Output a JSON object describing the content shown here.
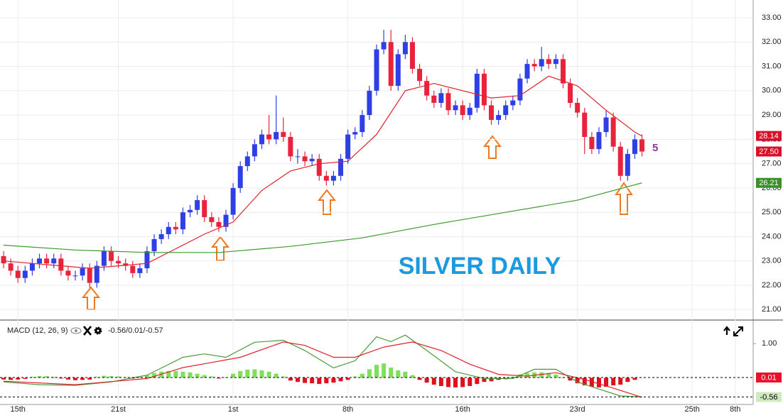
{
  "chart_data": [
    {
      "type": "candlestick",
      "title": "SILVER DAILY",
      "annotation": "5",
      "xlim": [
        -0.5,
        104.5
      ],
      "xticks": [
        {
          "value": 2,
          "label": "15th"
        },
        {
          "value": 16,
          "label": "21st"
        },
        {
          "value": 32,
          "label": "1st"
        },
        {
          "value": 48,
          "label": "8th"
        },
        {
          "value": 64,
          "label": "16th"
        },
        {
          "value": 80,
          "label": "23rd"
        },
        {
          "value": 96,
          "label": "25th"
        },
        {
          "value": 102,
          "label": "8th"
        }
      ],
      "ylim": [
        20.6,
        33.73
      ],
      "yticks": [
        {
          "value": 21,
          "label": "21.00"
        },
        {
          "value": 22,
          "label": "22.00"
        },
        {
          "value": 23,
          "label": "23.00"
        },
        {
          "value": 24,
          "label": "24.00"
        },
        {
          "value": 25,
          "label": "25.00"
        },
        {
          "value": 26,
          "label": "26.00"
        },
        {
          "value": 27,
          "label": "27.00"
        },
        {
          "value": 28,
          "label": "28.00"
        },
        {
          "value": 29,
          "label": "29.00"
        },
        {
          "value": 30,
          "label": "30.00"
        },
        {
          "value": 31,
          "label": "31.00"
        },
        {
          "value": 32,
          "label": "32.00"
        },
        {
          "value": 33,
          "label": "33.00"
        }
      ],
      "grid": true,
      "up_color": "#2f3fe6",
      "down_color": "#e8243c",
      "open": [
        23.2,
        22.9,
        22.6,
        22.3,
        22.6,
        22.9,
        23.1,
        22.9,
        23.1,
        22.6,
        22.4,
        22.4,
        22.7,
        22.1,
        22.8,
        23.4,
        23.0,
        22.9,
        22.8,
        22.5,
        22.7,
        23.4,
        23.9,
        24.1,
        24.4,
        24.3,
        25.0,
        25.1,
        25.5,
        24.8,
        24.6,
        24.4,
        24.9,
        26.0,
        26.9,
        27.3,
        27.8,
        28.2,
        28.0,
        28.3,
        28.1,
        27.3,
        27.3,
        27.1,
        27.2,
        26.5,
        26.3,
        26.5,
        27.2,
        28.2,
        28.3,
        29.0,
        30.0,
        31.7,
        32.0,
        30.2,
        31.5,
        32.0,
        30.9,
        30.4,
        29.8,
        29.5,
        29.9,
        29.2,
        29.4,
        29.0,
        29.3,
        30.7,
        29.4,
        28.8,
        29.0,
        29.4,
        29.6,
        30.5,
        31.1,
        31.0,
        31.3,
        31.1,
        31.3,
        30.3,
        29.5,
        29.1,
        28.1,
        27.6,
        28.3,
        28.9,
        27.7,
        26.5,
        27.4,
        28.0
      ],
      "high": [
        23.4,
        23.1,
        22.8,
        22.8,
        23.1,
        23.3,
        23.3,
        23.3,
        23.3,
        22.8,
        22.6,
        22.9,
        22.9,
        23.0,
        23.6,
        23.6,
        23.2,
        23.1,
        23.0,
        22.9,
        23.6,
        24.1,
        24.3,
        24.6,
        24.6,
        25.2,
        25.3,
        25.7,
        25.7,
        25.0,
        24.8,
        25.1,
        26.2,
        27.1,
        27.5,
        28.0,
        28.4,
        29.0,
        29.8,
        28.9,
        28.3,
        27.6,
        27.5,
        27.4,
        27.4,
        26.7,
        26.7,
        27.4,
        28.4,
        28.5,
        29.2,
        30.2,
        31.9,
        32.5,
        32.5,
        31.7,
        32.3,
        32.2,
        31.1,
        30.6,
        30.0,
        30.1,
        30.1,
        29.6,
        29.6,
        29.5,
        30.9,
        30.9,
        29.6,
        29.2,
        29.6,
        29.8,
        30.7,
        31.3,
        31.3,
        31.8,
        31.5,
        31.5,
        31.5,
        30.5,
        29.7,
        29.3,
        28.3,
        28.5,
        29.2,
        29.1,
        27.9,
        27.6,
        28.2,
        28.2
      ],
      "low": [
        22.7,
        22.4,
        22.1,
        22.1,
        22.4,
        22.7,
        22.7,
        22.7,
        22.4,
        22.2,
        22.2,
        22.2,
        21.9,
        21.9,
        22.6,
        22.8,
        22.7,
        22.6,
        22.3,
        22.3,
        22.5,
        23.2,
        23.7,
        23.9,
        24.1,
        24.1,
        24.8,
        24.9,
        24.6,
        24.4,
        24.2,
        24.2,
        24.7,
        25.8,
        26.7,
        27.1,
        27.6,
        27.8,
        27.8,
        27.9,
        27.1,
        27.0,
        26.9,
        26.9,
        26.3,
        26.1,
        26.1,
        26.3,
        27.0,
        28.0,
        28.1,
        28.8,
        29.8,
        31.5,
        30.0,
        30.0,
        31.3,
        30.7,
        30.2,
        29.6,
        29.3,
        29.3,
        29.0,
        29.0,
        28.8,
        28.8,
        29.1,
        29.2,
        28.6,
        28.6,
        28.8,
        29.2,
        29.4,
        30.3,
        30.8,
        30.8,
        30.9,
        30.9,
        30.1,
        29.3,
        28.9,
        27.4,
        27.4,
        27.4,
        28.1,
        27.5,
        26.3,
        26.3,
        27.2,
        27.3
      ],
      "close": [
        22.9,
        22.6,
        22.3,
        22.6,
        22.9,
        23.1,
        22.9,
        23.1,
        22.6,
        22.4,
        22.4,
        22.7,
        22.1,
        22.8,
        23.4,
        23.0,
        22.9,
        22.8,
        22.5,
        22.7,
        23.4,
        23.9,
        24.1,
        24.4,
        24.3,
        25.0,
        25.1,
        25.5,
        24.8,
        24.6,
        24.4,
        24.9,
        26.0,
        26.9,
        27.3,
        27.8,
        28.2,
        28.0,
        28.3,
        28.1,
        27.3,
        27.3,
        27.1,
        27.2,
        26.5,
        26.3,
        26.5,
        27.2,
        28.2,
        28.3,
        29.0,
        30.0,
        31.7,
        32.0,
        30.2,
        31.5,
        32.0,
        30.9,
        30.4,
        29.8,
        29.5,
        29.9,
        29.2,
        29.4,
        29.0,
        29.3,
        30.7,
        29.4,
        28.8,
        29.0,
        29.4,
        29.6,
        30.5,
        31.1,
        31.0,
        31.3,
        31.1,
        31.3,
        30.3,
        29.5,
        29.1,
        28.1,
        27.6,
        28.3,
        28.9,
        27.7,
        26.5,
        27.4,
        28.0,
        27.5
      ],
      "overlays": [
        {
          "color": "#e0202a",
          "x": [
            0,
            4,
            8,
            12,
            16,
            20,
            24,
            28,
            32,
            36,
            40,
            44,
            48,
            52,
            56,
            60,
            64,
            68,
            72,
            76,
            80,
            84,
            88,
            89
          ],
          "values": [
            23.0,
            22.9,
            22.8,
            22.7,
            22.8,
            22.9,
            23.5,
            24.1,
            24.6,
            25.9,
            26.7,
            27.0,
            27.1,
            28.2,
            30.0,
            30.3,
            30.0,
            29.7,
            29.8,
            30.6,
            30.2,
            29.2,
            28.3,
            28.14
          ]
        },
        {
          "color": "#3c9a2c",
          "x": [
            0,
            10,
            20,
            30,
            40,
            50,
            60,
            70,
            80,
            89
          ],
          "values": [
            23.65,
            23.45,
            23.35,
            23.35,
            23.6,
            23.95,
            24.5,
            25.0,
            25.5,
            26.21
          ]
        }
      ],
      "price_markers": [
        {
          "value": 28.14,
          "label": "28.14",
          "color": "#d8102a",
          "text_color": "#ffffff"
        },
        {
          "value": 27.5,
          "label": "27.50",
          "color": "#d8102a",
          "text_color": "#ffffff"
        },
        {
          "value": 26.21,
          "label": "26.21",
          "color": "#3a8f2a",
          "text_color": "#ffffff"
        }
      ]
    },
    {
      "type": "macd",
      "title": "MACD (12, 26, 9)",
      "readout": "-0.56/0.01/-0.57",
      "ylim": [
        -0.78,
        1.67
      ],
      "yticks": [
        {
          "value": 1,
          "label": "1.00"
        }
      ],
      "histogram": {
        "pos_color": "#7ee05a",
        "neg_color": "#e0101e",
        "values": [
          -0.05,
          -0.06,
          -0.05,
          -0.03,
          0.03,
          0.05,
          0.05,
          0.03,
          -0.02,
          -0.05,
          -0.07,
          -0.06,
          -0.05,
          0.03,
          0.06,
          0.05,
          0.04,
          0.02,
          -0.02,
          0.03,
          0.08,
          0.14,
          0.18,
          0.2,
          0.2,
          0.18,
          0.16,
          0.12,
          0.08,
          0.04,
          -0.02,
          0.02,
          0.12,
          0.2,
          0.24,
          0.25,
          0.22,
          0.18,
          0.12,
          0.04,
          -0.08,
          -0.12,
          -0.15,
          -0.16,
          -0.18,
          -0.16,
          -0.14,
          -0.1,
          -0.06,
          0.04,
          0.12,
          0.25,
          0.38,
          0.42,
          0.3,
          0.22,
          0.18,
          0.08,
          -0.06,
          -0.14,
          -0.2,
          -0.24,
          -0.27,
          -0.28,
          -0.27,
          -0.24,
          -0.18,
          -0.12,
          -0.1,
          -0.06,
          -0.04,
          0.03,
          0.1,
          0.14,
          0.16,
          0.16,
          0.14,
          0.1,
          0.02,
          -0.08,
          -0.16,
          -0.22,
          -0.26,
          -0.28,
          -0.26,
          -0.22,
          -0.2,
          -0.12,
          -0.06,
          0.01
        ]
      },
      "series": [
        {
          "color": "#4a9a3a",
          "x": [
            0,
            5,
            10,
            15,
            20,
            25,
            28,
            31,
            35,
            39,
            42,
            46,
            49,
            52,
            54,
            56,
            59,
            63,
            67,
            71,
            74,
            77,
            80,
            83,
            86,
            89
          ],
          "values": [
            -0.12,
            -0.2,
            -0.22,
            -0.12,
            0.08,
            0.6,
            0.7,
            0.6,
            1.04,
            1.1,
            0.8,
            0.29,
            0.5,
            1.2,
            1.06,
            1.25,
            0.8,
            0.18,
            -0.02,
            -0.02,
            0.25,
            0.25,
            -0.12,
            -0.33,
            -0.53,
            -0.56
          ]
        },
        {
          "color": "#e0202a",
          "x": [
            0,
            10,
            20,
            25,
            29,
            33,
            39,
            42,
            46,
            49,
            53,
            57,
            61,
            65,
            69,
            73,
            77,
            81,
            85,
            89
          ],
          "values": [
            -0.1,
            -0.2,
            -0.02,
            0.3,
            0.45,
            0.6,
            1.05,
            0.95,
            0.6,
            0.6,
            0.9,
            1.05,
            0.8,
            0.4,
            0.1,
            0.05,
            0.15,
            -0.05,
            -0.3,
            -0.57
          ]
        }
      ],
      "markers": [
        {
          "value": 0.01,
          "label": "0.01",
          "color": "#e8102a",
          "text_color": "#ffffff"
        },
        {
          "value": -0.56,
          "label": "-0.56",
          "color": "#cfeabf",
          "text_color": "#000000"
        }
      ]
    }
  ]
}
